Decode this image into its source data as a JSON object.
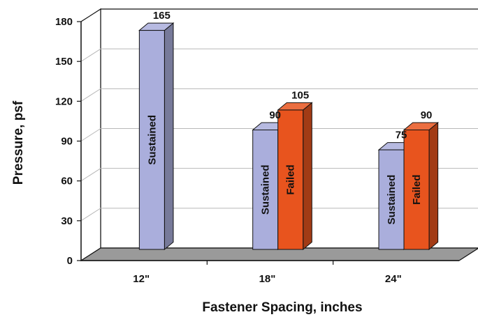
{
  "chart_data": {
    "type": "bar",
    "title": "",
    "xlabel": "Fastener Spacing, inches",
    "ylabel": "Pressure, psf",
    "ylim": [
      0,
      180
    ],
    "yticks": [
      "0",
      "30",
      "60",
      "90",
      "120",
      "150",
      "180"
    ],
    "categories": [
      "12\"",
      "18\"",
      "24\""
    ],
    "series": [
      {
        "name": "Sustained",
        "color": "#aaaedc",
        "values": [
          165,
          90,
          75
        ]
      },
      {
        "name": "Failed",
        "color": "#e8541e",
        "values": [
          null,
          105,
          90
        ]
      }
    ],
    "data_labels": [
      [
        "165",
        "90",
        "75"
      ],
      [
        null,
        "105",
        "90"
      ]
    ],
    "grid": true,
    "legend": "none (series names printed vertically inside bars)",
    "floor_color": "#9a9a9a"
  }
}
